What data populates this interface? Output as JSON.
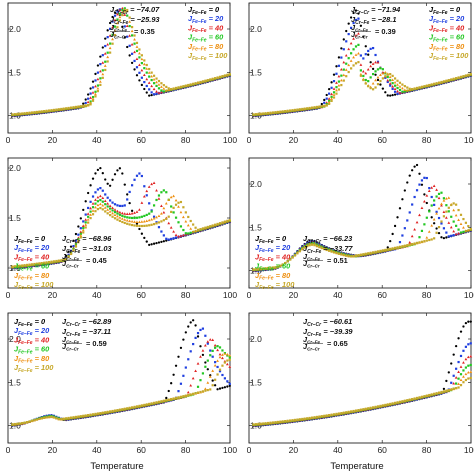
{
  "figure": {
    "xlabel": "Temperature"
  },
  "series_colors": [
    "#000000",
    "#1f3fe0",
    "#e02222",
    "#22c722",
    "#ee8f10",
    "#c7a82a"
  ],
  "chart_data": [
    {
      "type": "scatter",
      "panel": "a",
      "xlim": [
        0,
        100
      ],
      "ylim": [
        0.8,
        2.3
      ],
      "xticks": [
        "0",
        "20",
        "40",
        "60",
        "80",
        "100"
      ],
      "yticks": [
        "1.0",
        "1.5",
        "2.0"
      ],
      "xlabel": "",
      "legend_position": "top-right",
      "legend_ffe": [
        {
          "label": "J",
          "sub": "Fe–Fe",
          "value": "0"
        },
        {
          "label": "J",
          "sub": "Fe–Fe",
          "value": "20"
        },
        {
          "label": "J",
          "sub": "Fe–Fe",
          "value": "40"
        },
        {
          "label": "J",
          "sub": "Fe–Fe",
          "value": "60"
        },
        {
          "label": "J",
          "sub": "Fe–Fe",
          "value": "80"
        },
        {
          "label": "J",
          "sub": "Fe–Fe",
          "value": "100"
        }
      ],
      "params": [
        {
          "label": "J",
          "sub": "Cr–Cr",
          "value": "−74.07"
        },
        {
          "label": "J",
          "sub": "Cr–Fe",
          "value": "−25.93"
        },
        {
          "num": "J",
          "num_sub": "Cr–Fe",
          "den": "J",
          "den_sub": "Cr–Cr",
          "value": "0.35"
        }
      ],
      "series": [
        {
          "name": "0",
          "peaks": [
            [
              50,
              2.22
            ]
          ],
          "xmax": 100,
          "tail": 0.95
        },
        {
          "name": "20",
          "peaks": [
            [
              51,
              2.23
            ]
          ],
          "xmax": 100,
          "tail": 1.0
        },
        {
          "name": "40",
          "peaks": [
            [
              52,
              2.24
            ]
          ],
          "xmax": 100,
          "tail": 1.05
        },
        {
          "name": "60",
          "peaks": [
            [
              53,
              2.24
            ]
          ],
          "xmax": 100,
          "tail": 1.1
        },
        {
          "name": "80",
          "peaks": [
            [
              53.5,
              2.23
            ]
          ],
          "xmax": 100,
          "tail": 1.14
        },
        {
          "name": "100",
          "peaks": [
            [
              54,
              2.22
            ]
          ],
          "xmax": 100,
          "tail": 1.18
        }
      ]
    },
    {
      "type": "scatter",
      "panel": "b",
      "xlim": [
        0,
        100
      ],
      "ylim": [
        0.8,
        2.3
      ],
      "xticks": [
        "0",
        "20",
        "40",
        "60",
        "80",
        "100"
      ],
      "yticks": [
        "1.0",
        "1.5",
        "2.0"
      ],
      "xlabel": "",
      "legend_position": "top-right",
      "legend_ffe": [
        {
          "label": "J",
          "sub": "Fe–Fe",
          "value": "0"
        },
        {
          "label": "J",
          "sub": "Fe–Fe",
          "value": "20"
        },
        {
          "label": "J",
          "sub": "Fe–Fe",
          "value": "40"
        },
        {
          "label": "J",
          "sub": "Fe–Fe",
          "value": "60"
        },
        {
          "label": "J",
          "sub": "Fe–Fe",
          "value": "80"
        },
        {
          "label": "J",
          "sub": "Fe–Fe",
          "value": "100"
        }
      ],
      "params": [
        {
          "label": "J",
          "sub": "Cr–Cr",
          "value": "−71.94"
        },
        {
          "label": "J",
          "sub": "Cr–Fe",
          "value": "−28.1"
        },
        {
          "num": "J",
          "num_sub": "Cr–Fe",
          "den": "J",
          "den_sub": "Cr–Cr",
          "value": "0.39"
        }
      ],
      "series": [
        {
          "name": "0",
          "peaks": [
            [
              49,
              2.22
            ]
          ],
          "xmax": 100,
          "tail": 0.95
        },
        {
          "name": "20",
          "peaks": [
            [
              49.5,
              2.12
            ],
            [
              56,
              1.78
            ]
          ],
          "xmax": 100,
          "tail": 1.02
        },
        {
          "name": "40",
          "peaks": [
            [
              50,
              1.95
            ],
            [
              58,
              1.62
            ]
          ],
          "xmax": 100,
          "tail": 1.08
        },
        {
          "name": "60",
          "peaks": [
            [
              50,
              1.82
            ],
            [
              60,
              1.55
            ]
          ],
          "xmax": 100,
          "tail": 1.12
        },
        {
          "name": "80",
          "peaks": [
            [
              50,
              1.72
            ],
            [
              62,
              1.5
            ]
          ],
          "xmax": 100,
          "tail": 1.16
        },
        {
          "name": "100",
          "peaks": [
            [
              50,
              1.62
            ],
            [
              64,
              1.48
            ]
          ],
          "xmax": 100,
          "tail": 1.2
        }
      ]
    },
    {
      "type": "scatter",
      "panel": "c",
      "xlim": [
        0,
        100
      ],
      "ylim": [
        0.8,
        2.1
      ],
      "xticks": [
        "0",
        "20",
        "40",
        "60",
        "80",
        "100"
      ],
      "yticks": [
        "1.0",
        "1.5",
        "2.0"
      ],
      "xlabel": "",
      "legend_position": "bottom-left",
      "legend_ffe": [
        {
          "label": "J",
          "sub": "Fe–Fe",
          "value": "0"
        },
        {
          "label": "J",
          "sub": "Fe–Fe",
          "value": "20"
        },
        {
          "label": "J",
          "sub": "Fe–Fe",
          "value": "40"
        },
        {
          "label": "J",
          "sub": "Fe–Fe",
          "value": "60"
        },
        {
          "label": "J",
          "sub": "Fe–Fe",
          "value": "80"
        },
        {
          "label": "J",
          "sub": "Fe–Fe",
          "value": "100"
        }
      ],
      "params": [
        {
          "label": "J",
          "sub": "Cr–Cr",
          "value": "−68.96"
        },
        {
          "label": "J",
          "sub": "Cr–Fe",
          "value": "−31.03"
        },
        {
          "num": "J",
          "num_sub": "Cr–Fe",
          "den": "J",
          "den_sub": "Cr–Cr",
          "value": "0.45"
        }
      ],
      "series": [
        {
          "name": "0",
          "peaks": [
            [
              42,
              2.0
            ],
            [
              51,
              2.0
            ]
          ],
          "xmax": 100,
          "tail": 0.98
        },
        {
          "name": "20",
          "peaks": [
            [
              42,
              1.8
            ],
            [
              60,
              1.95
            ]
          ],
          "xmax": 100,
          "tail": 1.03
        },
        {
          "name": "40",
          "peaks": [
            [
              42,
              1.72
            ],
            [
              66,
              1.85
            ]
          ],
          "xmax": 100,
          "tail": 1.06
        },
        {
          "name": "60",
          "peaks": [
            [
              42,
              1.68
            ],
            [
              71,
              1.78
            ]
          ],
          "xmax": 100,
          "tail": 1.1
        },
        {
          "name": "80",
          "peaks": [
            [
              42,
              1.64
            ],
            [
              75,
              1.72
            ]
          ],
          "xmax": 100,
          "tail": 1.13
        },
        {
          "name": "100",
          "peaks": [
            [
              42,
              1.6
            ],
            [
              78,
              1.66
            ]
          ],
          "xmax": 100,
          "tail": 1.16
        }
      ]
    },
    {
      "type": "scatter",
      "panel": "d",
      "xlim": [
        0,
        100
      ],
      "ylim": [
        0.8,
        2.3
      ],
      "xticks": [
        "0",
        "20",
        "40",
        "60",
        "80",
        "100"
      ],
      "yticks": [
        "1.0",
        "1.5",
        "2.0"
      ],
      "xlabel": "",
      "legend_position": "bottom-left",
      "legend_ffe": [
        {
          "label": "J",
          "sub": "Fe–Fe",
          "value": "0"
        },
        {
          "label": "J",
          "sub": "Fe–Fe",
          "value": "20"
        },
        {
          "label": "J",
          "sub": "Fe–Fe",
          "value": "40"
        },
        {
          "label": "J",
          "sub": "Fe–Fe",
          "value": "60"
        },
        {
          "label": "J",
          "sub": "Fe–Fe",
          "value": "80"
        },
        {
          "label": "J",
          "sub": "Fe–Fe",
          "value": "100"
        }
      ],
      "params": [
        {
          "label": "J",
          "sub": "Cr–Cr",
          "value": "−66.23"
        },
        {
          "label": "J",
          "sub": "Cr–Fe",
          "value": "−33.77"
        },
        {
          "num": "J",
          "num_sub": "Cr–Fe",
          "den": "J",
          "den_sub": "Cr–Cr",
          "value": "0.51"
        }
      ],
      "series": [
        {
          "name": "0",
          "peaks": [
            [
              29,
              1.35
            ],
            [
              76,
              2.22
            ]
          ],
          "xmax": 100,
          "tail": 1.02
        },
        {
          "name": "20",
          "peaks": [
            [
              29,
              1.34
            ],
            [
              80,
              2.08
            ]
          ],
          "xmax": 100,
          "tail": 1.06
        },
        {
          "name": "40",
          "peaks": [
            [
              29,
              1.33
            ],
            [
              84,
              1.98
            ]
          ],
          "xmax": 100,
          "tail": 1.1
        },
        {
          "name": "60",
          "peaks": [
            [
              29,
              1.32
            ],
            [
              87,
              1.9
            ]
          ],
          "xmax": 100,
          "tail": 1.14
        },
        {
          "name": "80",
          "peaks": [
            [
              29,
              1.31
            ],
            [
              90,
              1.84
            ]
          ],
          "xmax": 100,
          "tail": 1.18
        },
        {
          "name": "100",
          "peaks": [
            [
              29,
              1.3
            ],
            [
              93,
              1.78
            ]
          ],
          "xmax": 100,
          "tail": 1.22
        }
      ]
    },
    {
      "type": "scatter",
      "panel": "e",
      "xlim": [
        0,
        100
      ],
      "ylim": [
        0.8,
        2.3
      ],
      "xticks": [
        "0",
        "20",
        "40",
        "60",
        "80",
        "100"
      ],
      "yticks": [
        "1.0",
        "1.5",
        "2.0"
      ],
      "xlabel": "Temperature",
      "legend_position": "top-left",
      "legend_ffe": [
        {
          "label": "J",
          "sub": "Fe–Fe",
          "value": "0"
        },
        {
          "label": "J",
          "sub": "Fe–Fe",
          "value": "20"
        },
        {
          "label": "J",
          "sub": "Fe–Fe",
          "value": "40"
        },
        {
          "label": "J",
          "sub": "Fe–Fe",
          "value": "60"
        },
        {
          "label": "J",
          "sub": "Fe–Fe",
          "value": "80"
        },
        {
          "label": "J",
          "sub": "Fe–Fe",
          "value": "100"
        }
      ],
      "params": [
        {
          "label": "J",
          "sub": "Cr–Cr",
          "value": "−62.89"
        },
        {
          "label": "J",
          "sub": "Cr–Fe",
          "value": "−37.11"
        },
        {
          "num": "J",
          "num_sub": "Cr–Fe",
          "den": "J",
          "den_sub": "Cr–Cr",
          "value": "0.59"
        }
      ],
      "series": [
        {
          "name": "0",
          "peaks": [
            [
              20,
              1.12
            ],
            [
              84,
              2.22
            ]
          ],
          "xmax": 100,
          "tail": 1.05
        },
        {
          "name": "20",
          "peaks": [
            [
              20,
              1.12
            ],
            [
              88,
              2.12
            ]
          ],
          "xmax": 100,
          "tail": 1.25
        },
        {
          "name": "40",
          "peaks": [
            [
              20,
              1.11
            ],
            [
              92,
              2.0
            ]
          ],
          "xmax": 100,
          "tail": 1.45
        },
        {
          "name": "60",
          "peaks": [
            [
              20,
              1.11
            ],
            [
              95,
              1.92
            ]
          ],
          "xmax": 100,
          "tail": 1.6
        },
        {
          "name": "80",
          "peaks": [
            [
              20,
              1.1
            ],
            [
              98,
              1.83
            ]
          ],
          "xmax": 100,
          "tail": 1.72
        },
        {
          "name": "100",
          "peaks": [
            [
              20,
              1.1
            ],
            [
              100,
              1.76
            ]
          ],
          "xmax": 100,
          "tail": 1.76
        }
      ]
    },
    {
      "type": "scatter",
      "panel": "f",
      "xlim": [
        0,
        100
      ],
      "ylim": [
        0.8,
        2.3
      ],
      "xticks": [
        "0",
        "20",
        "40",
        "60",
        "80",
        "100"
      ],
      "yticks": [
        "1.0",
        "1.5",
        "2.0"
      ],
      "xlabel": "Temperature",
      "legend_position": "top-left",
      "legend_ffe": [],
      "params": [
        {
          "label": "J",
          "sub": "Cr–Cr",
          "value": "−60.61"
        },
        {
          "label": "J",
          "sub": "Cr–Fe",
          "value": "−39.39"
        },
        {
          "num": "J",
          "num_sub": "Cr–Fe",
          "den": "J",
          "den_sub": "Cr–Cr",
          "value": "0.65"
        }
      ],
      "series": [
        {
          "name": "0",
          "peaks": [
            [
              99,
              2.2
            ]
          ],
          "xmax": 100,
          "tail": 2.2
        },
        {
          "name": "20",
          "peaks": [
            [
              100,
              1.95
            ]
          ],
          "xmax": 100,
          "tail": 1.95
        },
        {
          "name": "40",
          "peaks": [
            [
              100,
              1.8
            ]
          ],
          "xmax": 100,
          "tail": 1.8
        },
        {
          "name": "60",
          "peaks": [
            [
              100,
              1.7
            ]
          ],
          "xmax": 100,
          "tail": 1.7
        },
        {
          "name": "80",
          "peaks": [
            [
              100,
              1.62
            ]
          ],
          "xmax": 100,
          "tail": 1.62
        },
        {
          "name": "100",
          "peaks": [
            [
              100,
              1.55
            ]
          ],
          "xmax": 100,
          "tail": 1.55
        }
      ]
    }
  ]
}
